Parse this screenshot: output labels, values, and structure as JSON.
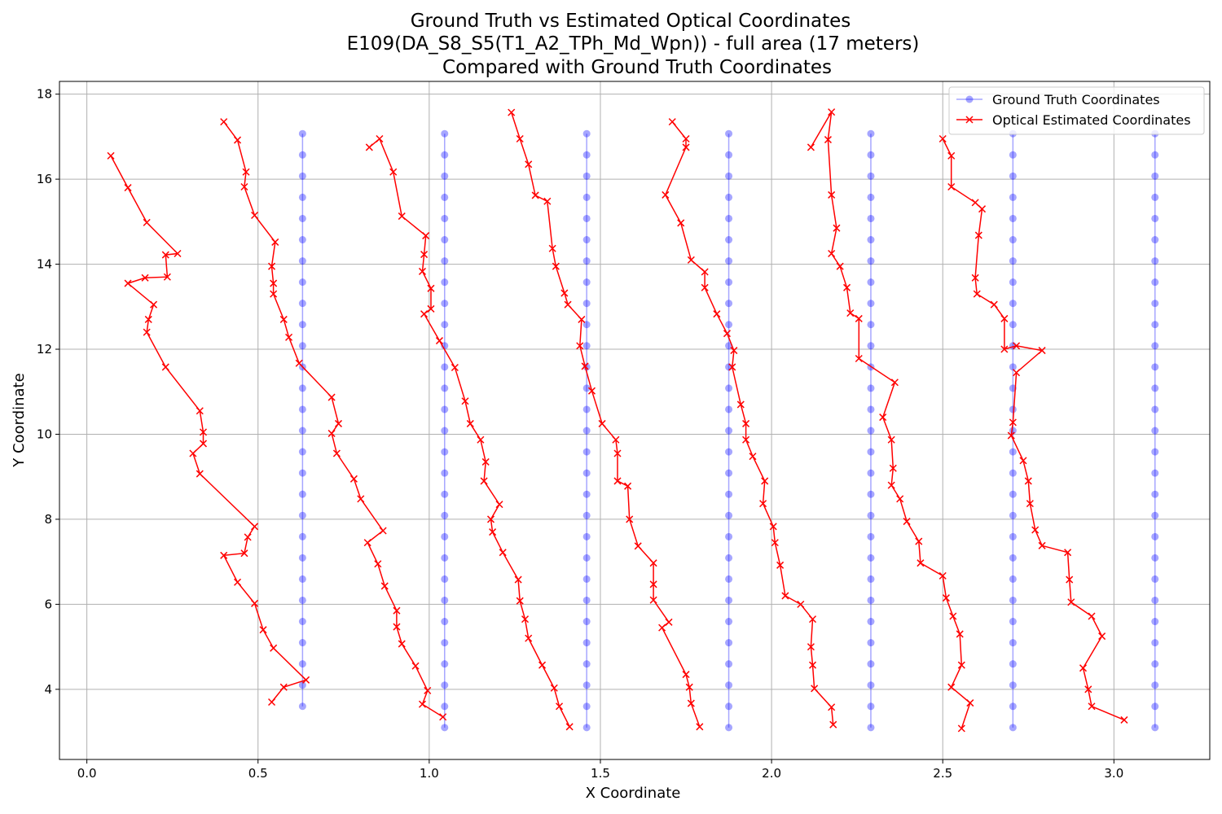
{
  "chart_data": {
    "type": "line",
    "title_lines": [
      "Ground Truth vs Estimated Optical Coordinates",
      "E109(DA_S8_S5(T1_A2_TPh_Md_Wpn)) - full area (17 meters)",
      "Compared with Ground Truth Coordinates"
    ],
    "xlabel": "X Coordinate",
    "ylabel": "Y Coordinate",
    "xlim": [
      -0.08,
      3.28
    ],
    "ylim": [
      2.35,
      18.3
    ],
    "xticks": [
      0.0,
      0.5,
      1.0,
      1.5,
      2.0,
      2.5,
      3.0
    ],
    "xtick_labels": [
      "0.0",
      "0.5",
      "1.0",
      "1.5",
      "2.0",
      "2.5",
      "3.0"
    ],
    "yticks": [
      4,
      6,
      8,
      10,
      12,
      14,
      16,
      18
    ],
    "ytick_labels": [
      "4",
      "6",
      "8",
      "10",
      "12",
      "14",
      "16",
      "18"
    ],
    "grid": true,
    "legend_position": "top-right",
    "colors": {
      "ground_truth": "#0000ff",
      "optical": "#ff0000"
    },
    "series": [
      {
        "name": "Ground Truth Coordinates",
        "marker": "circle",
        "columns_x": [
          0.63,
          1.045,
          1.46,
          1.875,
          2.29,
          2.705,
          3.12
        ],
        "column_y_ranges": [
          [
            3.6,
            17.07
          ],
          [
            3.1,
            17.07
          ],
          [
            3.1,
            17.07
          ],
          [
            3.1,
            17.07
          ],
          [
            3.1,
            17.07
          ],
          [
            3.1,
            17.07
          ],
          [
            3.1,
            17.07
          ]
        ],
        "y_step": 0.5
      },
      {
        "name": "Optical Estimated Coordinates",
        "marker": "x",
        "paths": [
          [
            [
              0.07,
              16.55
            ],
            [
              0.12,
              15.8
            ],
            [
              0.175,
              14.98
            ],
            [
              0.265,
              14.25
            ],
            [
              0.23,
              14.22
            ],
            [
              0.235,
              13.7
            ],
            [
              0.17,
              13.68
            ],
            [
              0.12,
              13.55
            ],
            [
              0.195,
              13.05
            ],
            [
              0.18,
              12.7
            ],
            [
              0.175,
              12.4
            ],
            [
              0.23,
              11.58
            ],
            [
              0.33,
              10.55
            ],
            [
              0.34,
              10.05
            ],
            [
              0.34,
              9.78
            ],
            [
              0.31,
              9.55
            ],
            [
              0.33,
              9.07
            ],
            [
              0.49,
              7.83
            ],
            [
              0.47,
              7.58
            ],
            [
              0.46,
              7.2
            ],
            [
              0.4,
              7.15
            ],
            [
              0.44,
              6.52
            ],
            [
              0.49,
              6.02
            ],
            [
              0.515,
              5.4
            ],
            [
              0.545,
              4.97
            ],
            [
              0.64,
              4.22
            ],
            [
              0.575,
              4.05
            ],
            [
              0.54,
              3.7
            ]
          ],
          [
            [
              0.4,
              17.35
            ],
            [
              0.44,
              16.92
            ],
            [
              0.465,
              16.17
            ],
            [
              0.46,
              15.82
            ],
            [
              0.49,
              15.15
            ],
            [
              0.55,
              14.52
            ],
            [
              0.54,
              13.95
            ],
            [
              0.545,
              13.55
            ],
            [
              0.545,
              13.3
            ],
            [
              0.575,
              12.7
            ],
            [
              0.59,
              12.28
            ],
            [
              0.62,
              11.67
            ],
            [
              0.715,
              10.87
            ],
            [
              0.735,
              10.25
            ],
            [
              0.715,
              10.02
            ],
            [
              0.73,
              9.55
            ],
            [
              0.78,
              8.95
            ],
            [
              0.8,
              8.48
            ],
            [
              0.865,
              7.73
            ],
            [
              0.82,
              7.45
            ],
            [
              0.85,
              6.95
            ],
            [
              0.87,
              6.43
            ],
            [
              0.905,
              5.85
            ],
            [
              0.905,
              5.47
            ],
            [
              0.92,
              5.07
            ],
            [
              0.96,
              4.55
            ],
            [
              0.995,
              3.97
            ],
            [
              0.98,
              3.65
            ],
            [
              1.04,
              3.35
            ]
          ],
          [
            [
              0.825,
              16.75
            ],
            [
              0.855,
              16.95
            ],
            [
              0.895,
              16.17
            ],
            [
              0.92,
              15.13
            ],
            [
              0.99,
              14.67
            ],
            [
              0.985,
              14.23
            ],
            [
              0.98,
              13.83
            ],
            [
              1.005,
              13.43
            ],
            [
              1.005,
              12.95
            ],
            [
              0.985,
              12.83
            ],
            [
              1.03,
              12.2
            ],
            [
              1.075,
              11.57
            ],
            [
              1.105,
              10.78
            ],
            [
              1.12,
              10.25
            ],
            [
              1.15,
              9.87
            ],
            [
              1.165,
              9.35
            ],
            [
              1.16,
              8.9
            ],
            [
              1.205,
              8.35
            ],
            [
              1.18,
              8.0
            ],
            [
              1.185,
              7.7
            ],
            [
              1.215,
              7.22
            ],
            [
              1.26,
              6.58
            ],
            [
              1.265,
              6.08
            ],
            [
              1.28,
              5.65
            ],
            [
              1.29,
              5.2
            ],
            [
              1.33,
              4.57
            ],
            [
              1.365,
              4.03
            ],
            [
              1.38,
              3.6
            ],
            [
              1.41,
              3.12
            ]
          ],
          [
            [
              1.24,
              17.57
            ],
            [
              1.265,
              16.95
            ],
            [
              1.29,
              16.35
            ],
            [
              1.31,
              15.62
            ],
            [
              1.345,
              15.48
            ],
            [
              1.36,
              14.37
            ],
            [
              1.37,
              13.95
            ],
            [
              1.395,
              13.32
            ],
            [
              1.405,
              13.05
            ],
            [
              1.445,
              12.7
            ],
            [
              1.44,
              12.08
            ],
            [
              1.455,
              11.6
            ],
            [
              1.475,
              11.02
            ],
            [
              1.505,
              10.25
            ],
            [
              1.545,
              9.87
            ],
            [
              1.55,
              9.55
            ],
            [
              1.55,
              8.9
            ],
            [
              1.58,
              8.78
            ],
            [
              1.585,
              8.0
            ],
            [
              1.61,
              7.37
            ],
            [
              1.655,
              6.97
            ],
            [
              1.655,
              6.47
            ],
            [
              1.655,
              6.1
            ],
            [
              1.7,
              5.58
            ],
            [
              1.68,
              5.45
            ],
            [
              1.75,
              4.35
            ],
            [
              1.76,
              4.05
            ],
            [
              1.765,
              3.67
            ],
            [
              1.79,
              3.12
            ]
          ],
          [
            [
              1.71,
              17.35
            ],
            [
              1.75,
              16.95
            ],
            [
              1.75,
              16.75
            ],
            [
              1.69,
              15.63
            ],
            [
              1.735,
              14.97
            ],
            [
              1.765,
              14.1
            ],
            [
              1.805,
              13.82
            ],
            [
              1.805,
              13.45
            ],
            [
              1.84,
              12.83
            ],
            [
              1.87,
              12.37
            ],
            [
              1.89,
              11.97
            ],
            [
              1.885,
              11.58
            ],
            [
              1.91,
              10.7
            ],
            [
              1.925,
              10.25
            ],
            [
              1.925,
              9.87
            ],
            [
              1.945,
              9.48
            ],
            [
              1.98,
              8.9
            ],
            [
              1.975,
              8.37
            ],
            [
              2.005,
              7.83
            ],
            [
              2.01,
              7.45
            ],
            [
              2.025,
              6.92
            ],
            [
              2.04,
              6.2
            ],
            [
              2.085,
              6.0
            ],
            [
              2.12,
              5.65
            ],
            [
              2.115,
              5.0
            ],
            [
              2.12,
              4.57
            ],
            [
              2.125,
              4.02
            ],
            [
              2.175,
              3.58
            ],
            [
              2.18,
              3.17
            ]
          ],
          [
            [
              2.115,
              16.75
            ],
            [
              2.175,
              17.58
            ],
            [
              2.165,
              16.93
            ],
            [
              2.175,
              15.63
            ],
            [
              2.19,
              14.85
            ],
            [
              2.175,
              14.25
            ],
            [
              2.2,
              13.95
            ],
            [
              2.22,
              13.45
            ],
            [
              2.23,
              12.85
            ],
            [
              2.255,
              12.72
            ],
            [
              2.255,
              11.78
            ],
            [
              2.36,
              11.22
            ],
            [
              2.325,
              10.4
            ],
            [
              2.35,
              9.87
            ],
            [
              2.355,
              9.2
            ],
            [
              2.35,
              8.8
            ],
            [
              2.375,
              8.48
            ],
            [
              2.395,
              7.95
            ],
            [
              2.43,
              7.48
            ],
            [
              2.435,
              6.97
            ],
            [
              2.5,
              6.67
            ],
            [
              2.51,
              6.15
            ],
            [
              2.53,
              5.72
            ],
            [
              2.55,
              5.3
            ],
            [
              2.555,
              4.57
            ],
            [
              2.525,
              4.05
            ],
            [
              2.58,
              3.68
            ],
            [
              2.555,
              3.08
            ]
          ],
          [
            [
              2.5,
              16.95
            ],
            [
              2.525,
              16.55
            ],
            [
              2.525,
              15.82
            ],
            [
              2.595,
              15.45
            ],
            [
              2.615,
              15.3
            ],
            [
              2.605,
              14.68
            ],
            [
              2.595,
              13.68
            ],
            [
              2.6,
              13.3
            ],
            [
              2.65,
              13.05
            ],
            [
              2.68,
              12.72
            ],
            [
              2.68,
              12.0
            ],
            [
              2.715,
              12.08
            ],
            [
              2.79,
              11.97
            ],
            [
              2.715,
              11.45
            ],
            [
              2.705,
              10.28
            ],
            [
              2.7,
              9.97
            ],
            [
              2.735,
              9.38
            ],
            [
              2.75,
              8.9
            ],
            [
              2.755,
              8.37
            ],
            [
              2.77,
              7.75
            ],
            [
              2.79,
              7.38
            ],
            [
              2.865,
              7.22
            ],
            [
              2.87,
              6.58
            ],
            [
              2.875,
              6.05
            ],
            [
              2.935,
              5.72
            ],
            [
              2.965,
              5.25
            ],
            [
              2.91,
              4.5
            ],
            [
              2.925,
              4.0
            ],
            [
              2.935,
              3.6
            ],
            [
              3.03,
              3.28
            ]
          ]
        ]
      }
    ]
  }
}
